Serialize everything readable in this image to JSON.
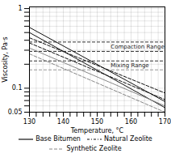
{
  "chart_data": {
    "type": "line",
    "xlabel": "Temperature, °C",
    "ylabel": "Viscosity, Pa·s",
    "log": "y",
    "grid": true,
    "legend": "bottom",
    "xlim": [
      130,
      170
    ],
    "ylim": [
      0.05,
      1.05
    ],
    "xticks": [
      130,
      {
        "value": 132,
        "label": null
      },
      {
        "value": 134,
        "label": null
      },
      {
        "value": 136,
        "label": null
      },
      {
        "value": 138,
        "label": null
      },
      140,
      {
        "value": 142,
        "label": null
      },
      {
        "value": 144,
        "label": null
      },
      {
        "value": 146,
        "label": null
      },
      {
        "value": 148,
        "label": null
      },
      150,
      {
        "value": 152,
        "label": null
      },
      {
        "value": 154,
        "label": null
      },
      {
        "value": 156,
        "label": null
      },
      {
        "value": 158,
        "label": null
      },
      160,
      {
        "value": 162,
        "label": null
      },
      {
        "value": 164,
        "label": null
      },
      {
        "value": 166,
        "label": null
      },
      {
        "value": 168,
        "label": null
      },
      170
    ],
    "yticks": [
      0.05,
      {
        "value": 0.06,
        "label": null
      },
      {
        "value": 0.07,
        "label": null
      },
      {
        "value": 0.08,
        "label": null
      },
      {
        "value": 0.09,
        "label": null
      },
      0.1,
      {
        "value": 0.2,
        "label": null
      },
      {
        "value": 0.3,
        "label": null
      },
      {
        "value": 0.4,
        "label": null
      },
      {
        "value": 0.5,
        "label": null
      },
      {
        "value": 0.6,
        "label": null
      },
      {
        "value": 0.7,
        "label": null
      },
      {
        "value": 0.8,
        "label": null
      },
      {
        "value": 0.9,
        "label": null
      },
      1
    ],
    "x": [
      130,
      170
    ],
    "series": [
      {
        "color": "#111111",
        "line_style": "solid",
        "values": [
          0.58,
          0.068
        ]
      },
      {
        "color": "#111111",
        "line_style": "solid",
        "values": [
          0.5,
          0.057
        ]
      },
      {
        "color": "#111111",
        "line_style": "dashed",
        "values": [
          0.43,
          0.087
        ]
      },
      {
        "color": "#111111",
        "line_style": "dashed",
        "values": [
          0.37,
          0.072
        ]
      },
      {
        "color": "#888888",
        "line_style": "solid",
        "values": [
          0.32,
          0.06
        ]
      },
      {
        "color": "#888888",
        "line_style": "dashed",
        "values": [
          0.27,
          0.05
        ]
      }
    ],
    "hlines": [
      {
        "y": 0.38,
        "color": "#333333",
        "line_style": "dashed"
      },
      {
        "y": 0.29,
        "color": "#333333",
        "line_style": "dashed"
      },
      {
        "y": 0.22,
        "color": "#333333",
        "line_style": "dashed"
      },
      {
        "y": 0.17,
        "color": "#999999",
        "line_style": "dashed"
      }
    ],
    "annotations": [
      {
        "text": "Compaction Range",
        "x": 154,
        "y": 0.332
      },
      {
        "text": "Mixing Range",
        "x": 154,
        "y": 0.195
      }
    ],
    "legend_entries": [
      {
        "name": "Base Bitumen",
        "color": "#111111",
        "line_style": "solid"
      },
      {
        "name": "Natural Zeolite",
        "color": "#111111",
        "line_style": "dashdot"
      },
      {
        "name": "Synthetic Zeolite",
        "color": "#888888",
        "line_style": "dashed"
      }
    ]
  }
}
